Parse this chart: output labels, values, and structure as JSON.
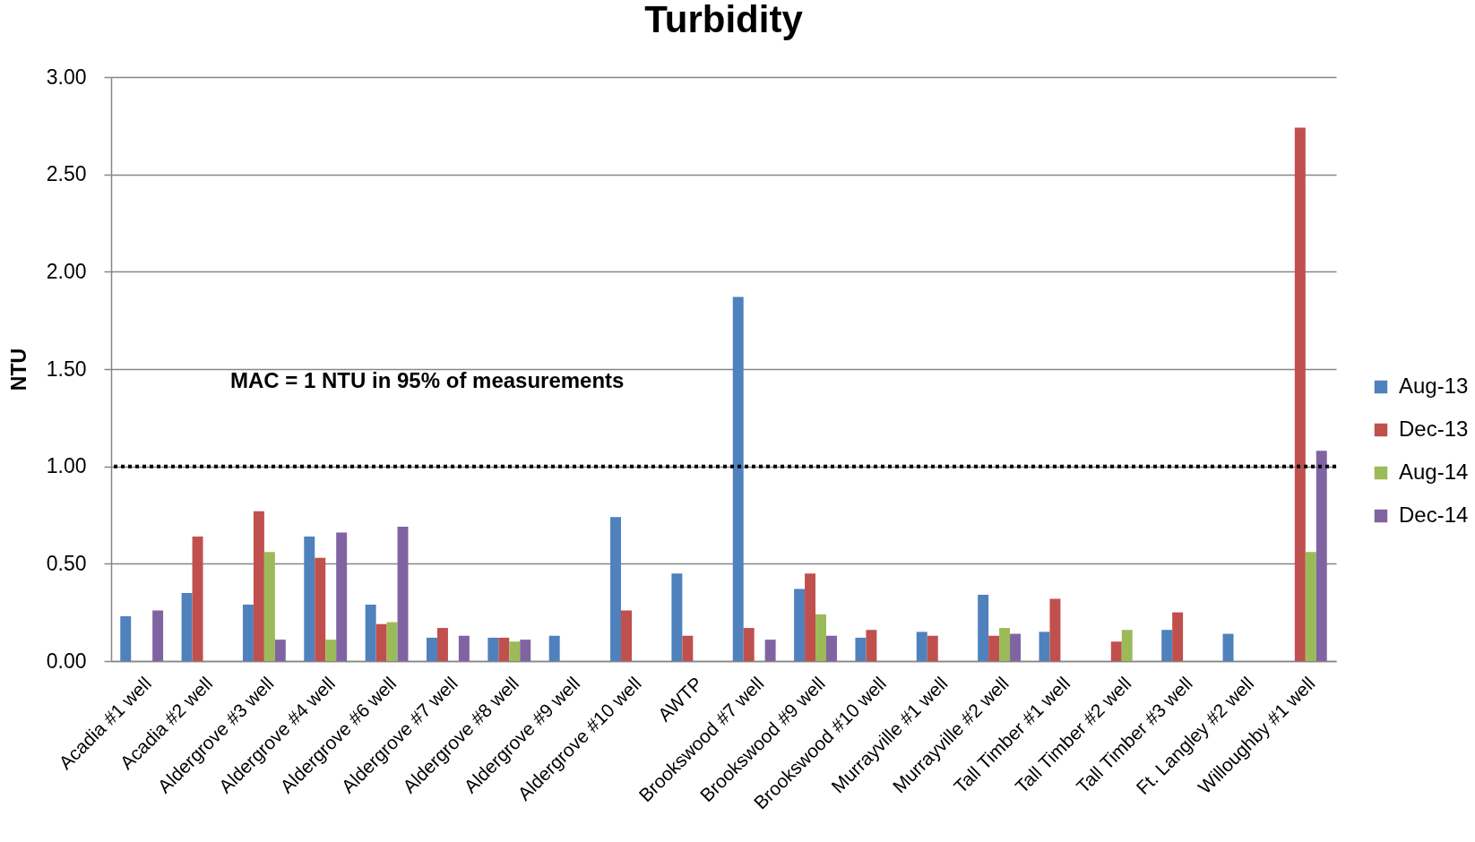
{
  "chart_data": {
    "type": "bar",
    "title": "Turbidity",
    "ylabel": "NTU",
    "categories": [
      "Acadia #1 well",
      "Acadia #2 well",
      "Aldergrove #3 well",
      "Aldergrove #4 well",
      "Aldergrove #6 well",
      "Aldergrove #7 well",
      "Aldergrove #8 well",
      "Aldergrove #9 well",
      "Aldergrove #10 well",
      "AWTP",
      "Brookswood #7 well",
      "Brookswood #9 well",
      "Brookswood #10 well",
      "Murrayville #1 well",
      "Murrayville #2 well",
      "Tall Timber #1 well",
      "Tall Timber #2 well",
      "Tall Timber #3 well",
      "Ft. Langley #2 well",
      "Willoughby #1 well"
    ],
    "series": [
      {
        "name": "Aug-13",
        "color": "#4f81bd",
        "values": [
          0.23,
          0.35,
          0.29,
          0.64,
          0.29,
          0.12,
          0.12,
          0.13,
          0.74,
          0.45,
          1.87,
          0.37,
          0.12,
          0.15,
          0.34,
          0.15,
          null,
          0.16,
          0.14,
          null
        ]
      },
      {
        "name": "Dec-13",
        "color": "#c0504d",
        "values": [
          null,
          0.64,
          0.77,
          0.53,
          0.19,
          0.17,
          0.12,
          null,
          0.26,
          0.13,
          0.17,
          0.45,
          0.16,
          0.13,
          0.13,
          0.32,
          0.1,
          0.25,
          null,
          2.74
        ]
      },
      {
        "name": "Aug-14",
        "color": "#9bbb59",
        "values": [
          null,
          null,
          0.56,
          0.11,
          0.2,
          null,
          0.1,
          null,
          null,
          null,
          null,
          0.24,
          null,
          null,
          0.17,
          null,
          0.16,
          null,
          null,
          0.56
        ]
      },
      {
        "name": "Dec-14",
        "color": "#8064a2",
        "values": [
          0.26,
          null,
          0.11,
          0.66,
          0.69,
          0.13,
          0.11,
          null,
          null,
          null,
          0.11,
          0.13,
          null,
          null,
          0.14,
          null,
          null,
          null,
          null,
          1.08
        ]
      }
    ],
    "ylim": [
      0,
      3
    ],
    "yticks": [
      {
        "value": 0,
        "label": "0.00"
      },
      {
        "value": 0.5,
        "label": "0.50"
      },
      {
        "value": 1,
        "label": "1.00"
      },
      {
        "value": 1.5,
        "label": "1.50"
      },
      {
        "value": 2,
        "label": "2.00"
      },
      {
        "value": 2.5,
        "label": "2.50"
      },
      {
        "value": 3,
        "label": "3.00"
      }
    ],
    "ref_lines": [
      {
        "axis": "y",
        "value": 1,
        "color": "#000000",
        "line_style": "dotted"
      }
    ],
    "annotations": [
      "MAC = 1 NTU in 95% of measurements"
    ],
    "grid": "y",
    "legend": "right"
  }
}
